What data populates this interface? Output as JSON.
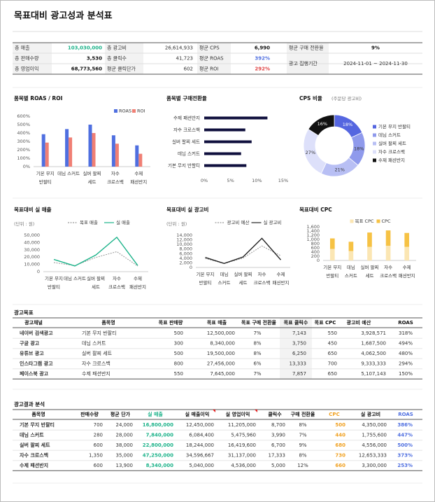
{
  "title": "목표대비 광고성과 분석표",
  "summary": {
    "rows": [
      [
        [
          "총 매출",
          "103,030,000"
        ],
        [
          "총 광고비",
          "26,614,933"
        ],
        [
          "평균 CPS",
          "6,990"
        ],
        [
          "평균 구매 전환율",
          "9%"
        ]
      ],
      [
        [
          "총 판매수량",
          "3,530"
        ],
        [
          "총 클릭수",
          "41,723"
        ],
        [
          "평균 ROAS",
          "392%"
        ]
      ],
      [
        [
          "총 영업이익",
          "68,773,560"
        ],
        [
          "평균 클릭단가",
          "602"
        ],
        [
          "평균 ROI",
          "292%"
        ]
      ]
    ],
    "period": [
      "광고 집행기간",
      "2024-11-01 ~ 2024-11-30"
    ]
  },
  "chart_data": [
    {
      "type": "bar",
      "title": "품목별 ROAS / ROI",
      "categories": [
        [
          "기본 무지",
          "반팔티"
        ],
        [
          "데님 스커트"
        ],
        [
          "실버 팔찌",
          "세트"
        ],
        [
          "자수",
          "크로스백"
        ],
        [
          "수제",
          "패션반지"
        ]
      ],
      "series": [
        {
          "name": "ROAS",
          "color": "#4f6fe0",
          "values": [
            386,
            447,
            500,
            373,
            253
          ]
        },
        {
          "name": "ROI",
          "color": "#f07f74",
          "values": [
            286,
            347,
            400,
            273,
            153
          ]
        }
      ],
      "ylim": [
        0,
        600
      ],
      "yticks": [
        {
          "value": 0,
          "label": "0%"
        },
        {
          "value": 100,
          "label": "100%"
        },
        {
          "value": 200,
          "label": "200%"
        },
        {
          "value": 300,
          "label": "300%"
        },
        {
          "value": 400,
          "label": "400%"
        },
        {
          "value": 500,
          "label": "500%"
        },
        {
          "value": 600,
          "label": "600%"
        }
      ],
      "legend": "top-right"
    },
    {
      "type": "barh",
      "title": "품목별 구매전환율",
      "categories": [
        "수제 패션반지",
        "자수 크로스백",
        "실버 팔찌 세트",
        "데님 스커트",
        "기본 무지 반팔티"
      ],
      "values": [
        12,
        7.8,
        9,
        7,
        8
      ],
      "color": "#0f0f3d",
      "xlim": [
        0,
        15
      ],
      "xticks": [
        {
          "value": 0,
          "label": "0%"
        },
        {
          "value": 5,
          "label": "5%"
        },
        {
          "value": 10,
          "label": "10%"
        },
        {
          "value": 15,
          "label": "15%"
        }
      ]
    },
    {
      "type": "pie",
      "title": "CPS 비율",
      "subtitle": "(주문당 광고비)",
      "categories": [
        "기본 무지 반팔티",
        "데님 스커트",
        "실버 팔찌 세트",
        "자수 크로스백",
        "수제 패션반지"
      ],
      "values": [
        18,
        18,
        21,
        27,
        16
      ],
      "value_labels": [
        "18%",
        "18%",
        "21%",
        "27%",
        "16%"
      ],
      "colors": [
        "#5566e0",
        "#8f9aec",
        "#b8bff4",
        "#dde0fa",
        "#111111"
      ],
      "legend": "right"
    },
    {
      "type": "line",
      "title": "목표대비 실 매출",
      "unit_label": "(단위 : 원)",
      "categories": [
        [
          "기본 무지",
          "반팔티"
        ],
        [
          "데님 스커트"
        ],
        [
          "실버 팔찌",
          "세트"
        ],
        [
          "자수",
          "크로스백"
        ],
        [
          "수제",
          "패션반지"
        ]
      ],
      "series": [
        {
          "name": "목표 매출",
          "color": "#999999",
          "dashed": true,
          "values": [
            12500,
            8340,
            19500,
            27456,
            7645
          ]
        },
        {
          "name": "실 매출",
          "color": "#1db38a",
          "dashed": false,
          "values": [
            16800,
            7840,
            22800,
            47250,
            8340
          ]
        }
      ],
      "ylim": [
        0,
        50000
      ],
      "yticks": [
        0,
        {
          "value": 10000,
          "label": "10,000"
        },
        {
          "value": 20000,
          "label": "20,000"
        },
        {
          "value": 30000,
          "label": "30,000"
        },
        {
          "value": 40000,
          "label": "40,000"
        },
        {
          "value": 50000,
          "label": "50,000"
        }
      ]
    },
    {
      "type": "line",
      "title": "목표대비 실 광고비",
      "unit_label": "(단위 : 원)",
      "categories": [
        [
          "기본 무지",
          "반팔티"
        ],
        [
          "데님",
          "스커트"
        ],
        [
          "실버 팔찌",
          "세트"
        ],
        [
          "자수",
          "크로스백"
        ],
        [
          "수제",
          "패션반지"
        ]
      ],
      "series": [
        {
          "name": "광고비 예산",
          "color": "#999999",
          "dashed": true,
          "values": [
            3928.571,
            1687.5,
            4062.5,
            9333.333,
            5107.143
          ]
        },
        {
          "name": "실 광고비",
          "color": "#222222",
          "dashed": false,
          "values": [
            4350,
            1755.6,
            4556,
            12653.333,
            3300
          ]
        }
      ],
      "ylim": [
        0,
        14000
      ],
      "yticks": [
        0,
        {
          "value": 2000,
          "label": "2,000"
        },
        {
          "value": 4000,
          "label": "4,000"
        },
        {
          "value": 6000,
          "label": "6,000"
        },
        {
          "value": 8000,
          "label": "8,000"
        },
        {
          "value": 10000,
          "label": "10,000"
        },
        {
          "value": 12000,
          "label": "12,000"
        },
        {
          "value": 14000,
          "label": "14,000"
        }
      ]
    },
    {
      "type": "stacked_bar",
      "title": "목표대비 CPC",
      "categories": [
        [
          "기본 무지",
          "반팔티"
        ],
        [
          "데님",
          "스커트"
        ],
        [
          "실버 팔찌",
          "세트"
        ],
        [
          "자수",
          "크로스백"
        ],
        [
          "수제",
          "패션반지"
        ]
      ],
      "series": [
        {
          "name": "목표 CPC",
          "color": "#fbe6b3",
          "values": [
            550,
            450,
            650,
            700,
            650
          ]
        },
        {
          "name": "CPC",
          "color": "#f6c244",
          "values": [
            500,
            440,
            680,
            730,
            660
          ]
        }
      ],
      "ylim": [
        0,
        1600
      ],
      "yticks": [
        0,
        200,
        400,
        600,
        800,
        {
          "value": 1000,
          "label": "1,000"
        },
        {
          "value": 1200,
          "label": "1,200"
        },
        {
          "value": 1400,
          "label": "1,400"
        },
        {
          "value": 1600,
          "label": "1,600"
        }
      ]
    }
  ],
  "tables": [
    {
      "title": "광고목표",
      "headers": [
        "광고채널",
        "품목명",
        "목표 판매량",
        "목표 매출",
        "목표 구매 전환율",
        "목표 클릭수",
        "목표 CPC",
        "광고비 예산",
        "ROAS"
      ],
      "rows": [
        [
          "네이버 검색광고",
          "기본 무지 반팔티",
          "500",
          "12,500,000",
          "7%",
          "7,143",
          "550",
          "3,928,571",
          "318%"
        ],
        [
          "구글 광고",
          "데님 스커트",
          "300",
          "8,340,000",
          "8%",
          "3,750",
          "450",
          "1,687,500",
          "494%"
        ],
        [
          "유튜브 광고",
          "실버 팔찌 세트",
          "500",
          "19,500,000",
          "8%",
          "6,250",
          "650",
          "4,062,500",
          "480%"
        ],
        [
          "인스타그램 광고",
          "자수 크로스백",
          "800",
          "27,456,000",
          "6%",
          "13,333",
          "700",
          "9,333,333",
          "294%"
        ],
        [
          "페이스북 광고",
          "수제 패션반지",
          "550",
          "7,645,000",
          "7%",
          "7,857",
          "650",
          "5,107,143",
          "150%"
        ]
      ]
    },
    {
      "title": "광고결과 분석",
      "headers": [
        "품목명",
        "판매수량",
        "평균 단가",
        "실 매출",
        "실 매출이익",
        "실 영업이익",
        "클릭수",
        "구매 전환율",
        "CPC",
        "실 광고비",
        "ROAS"
      ],
      "rows": [
        [
          "기본 무지 반팔티",
          "700",
          "24,000",
          "16,800,000",
          "12,450,000",
          "11,205,000",
          "8,700",
          "8%",
          "500",
          "4,350,000",
          "386%"
        ],
        [
          "데님 스커트",
          "280",
          "28,000",
          "7,840,000",
          "6,084,400",
          "5,475,960",
          "3,990",
          "7%",
          "440",
          "1,755,600",
          "447%"
        ],
        [
          "실버 팔찌 세트",
          "600",
          "38,000",
          "22,800,000",
          "18,244,000",
          "16,419,600",
          "6,700",
          "9%",
          "680",
          "4,556,000",
          "500%"
        ],
        [
          "자수 크로스백",
          "1,350",
          "35,000",
          "47,250,000",
          "34,596,667",
          "31,137,000",
          "17,333",
          "8%",
          "730",
          "12,653,333",
          "373%"
        ],
        [
          "수제 패션반지",
          "600",
          "13,900",
          "8,340,000",
          "5,040,000",
          "4,536,000",
          "5,000",
          "12%",
          "660",
          "3,300,000",
          "253%"
        ]
      ]
    }
  ]
}
